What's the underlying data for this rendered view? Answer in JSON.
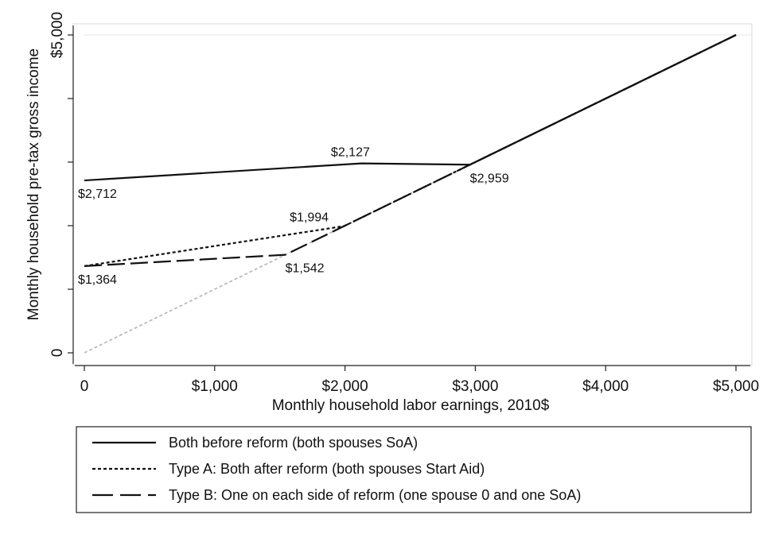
{
  "chart_data": {
    "type": "line",
    "title": "",
    "xlabel": "Monthly household labor earnings, 2010$",
    "ylabel": "Monthly household pre-tax gross income",
    "xlim": [
      0,
      5000
    ],
    "ylim": [
      0,
      5000
    ],
    "x_ticks": [
      0,
      1000,
      2000,
      3000,
      4000,
      5000
    ],
    "x_tick_labels": [
      "0",
      "$1,000",
      "$2,000",
      "$3,000",
      "$4,000",
      "$5,000"
    ],
    "y_ticks": [
      0,
      1000,
      2000,
      3000,
      4000,
      5000
    ],
    "y_tick_labels": [
      "0",
      "",
      "",
      "",
      "",
      "$5,000"
    ],
    "grid": "horizontal line at top only",
    "legend_position": "below",
    "series": [
      {
        "name": "Both before reform (both spouses SoA)",
        "style": "solid",
        "color": "#111111",
        "points": [
          [
            0,
            2712
          ],
          [
            2127,
            2980
          ],
          [
            2959,
            2959
          ],
          [
            5000,
            5000
          ]
        ]
      },
      {
        "name": "Type A: Both after reform (both spouses Start Aid)",
        "style": "dotted",
        "color": "#111111",
        "points": [
          [
            0,
            1364
          ],
          [
            1994,
            1994
          ],
          [
            5000,
            5000
          ]
        ]
      },
      {
        "name": "Type B: One on each side of reform (one spouse 0 and one SoA)",
        "style": "dashed",
        "color": "#111111",
        "points": [
          [
            0,
            1364
          ],
          [
            1542,
            1542
          ],
          [
            5000,
            5000
          ]
        ]
      }
    ],
    "reference_line": {
      "style": "dotted",
      "color": "#bbbbbb",
      "points": [
        [
          0,
          0
        ],
        [
          5000,
          5000
        ]
      ]
    },
    "annotations": [
      {
        "text": "$2,712",
        "x": 0,
        "y": 2712,
        "anchor": "below-right"
      },
      {
        "text": "$2,127",
        "x": 2127,
        "y": 2980,
        "anchor": "above"
      },
      {
        "text": "$2,959",
        "x": 2959,
        "y": 2959,
        "anchor": "below-right"
      },
      {
        "text": "$1,994",
        "x": 1994,
        "y": 1994,
        "anchor": "above-left"
      },
      {
        "text": "$1,364",
        "x": 0,
        "y": 1364,
        "anchor": "below-right"
      },
      {
        "text": "$1,542",
        "x": 1542,
        "y": 1542,
        "anchor": "below-right"
      }
    ]
  }
}
